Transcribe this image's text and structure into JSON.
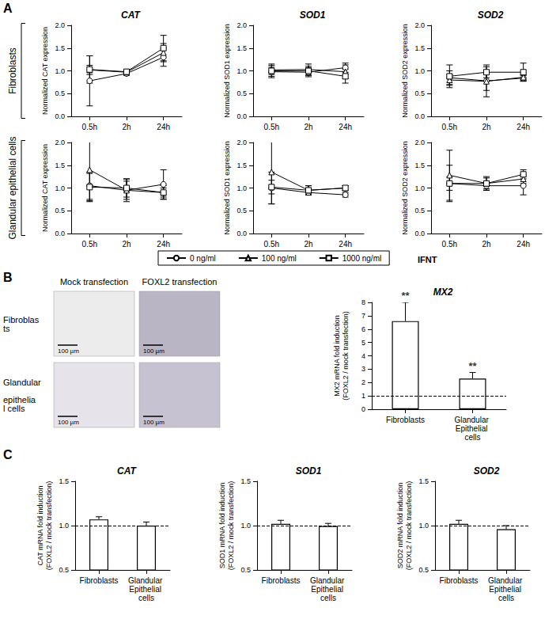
{
  "figure": {
    "panel_labels": [
      "A",
      "B",
      "C"
    ],
    "row_labels": [
      "Fibroblasts",
      "Glandular epithelial cells"
    ],
    "legend_title": "IFNT",
    "images": {
      "columns": [
        "Mock transfection",
        "FOXL2 transfection"
      ],
      "rows": [
        "Fibroblasts",
        "Glandular epithelial cells"
      ],
      "scale_bar": "100 µm"
    }
  },
  "chart_data": [
    {
      "type": "line",
      "title": "CAT",
      "y_label": "Normalized CAT expression",
      "categories": [
        "0.5h",
        "2h",
        "24h"
      ],
      "ylim": [
        0,
        2
      ],
      "yticks": [
        {
          "value": 0,
          "label": "0.0"
        },
        0.5,
        {
          "value": 1,
          "label": "1.0"
        },
        1.5,
        {
          "value": 2,
          "label": "2.0"
        }
      ],
      "grid": false,
      "legend": "bottom",
      "series": [
        {
          "name": "0 ng/ml",
          "color": "#000000",
          "marker": "circle",
          "values": [
            0.78,
            0.94,
            1.3
          ],
          "errors": [
            0.55,
            0.04,
            0.2
          ]
        },
        {
          "name": "100 ng/ml",
          "color": "#000000",
          "marker": "triangle",
          "values": [
            1.02,
            0.97,
            1.4
          ],
          "errors": [
            0.1,
            0.05,
            0.2
          ]
        },
        {
          "name": "1000 ng/ml",
          "color": "#000000",
          "marker": "square",
          "values": [
            1.03,
            0.98,
            1.5
          ],
          "errors": [
            0.3,
            0.04,
            0.28
          ]
        }
      ]
    },
    {
      "type": "line",
      "title": "SOD1",
      "y_label": "Normalized SOD1 expression",
      "categories": [
        "0.5h",
        "2h",
        "24h"
      ],
      "ylim": [
        0,
        2
      ],
      "yticks": [
        {
          "value": 0,
          "label": "0.0"
        },
        0.5,
        {
          "value": 1,
          "label": "1.0"
        },
        1.5,
        {
          "value": 2,
          "label": "2.0"
        }
      ],
      "grid": false,
      "legend": "bottom",
      "series": [
        {
          "name": "0 ng/ml",
          "color": "#000000",
          "marker": "circle",
          "values": [
            0.98,
            0.97,
            1.07
          ],
          "errors": [
            0.1,
            0.1,
            0.1
          ]
        },
        {
          "name": "100 ng/ml",
          "color": "#000000",
          "marker": "triangle",
          "values": [
            1.02,
            1.03,
            0.98
          ],
          "errors": [
            0.1,
            0.12,
            0.15
          ]
        },
        {
          "name": "1000 ng/ml",
          "color": "#000000",
          "marker": "square",
          "values": [
            1.0,
            1.0,
            0.88
          ],
          "errors": [
            0.15,
            0.1,
            0.15
          ]
        }
      ]
    },
    {
      "type": "line",
      "title": "SOD2",
      "y_label": "Normalized SOD2 expression",
      "categories": [
        "0.5h",
        "2h",
        "24h"
      ],
      "ylim": [
        0,
        2
      ],
      "yticks": [
        {
          "value": 0,
          "label": "0.0"
        },
        0.5,
        {
          "value": 1,
          "label": "1.0"
        },
        1.5,
        {
          "value": 2,
          "label": "2.0"
        }
      ],
      "grid": false,
      "legend": "bottom",
      "series": [
        {
          "name": "0 ng/ml",
          "color": "#000000",
          "marker": "circle",
          "values": [
            0.85,
            0.78,
            0.84
          ],
          "errors": [
            0.15,
            0.35,
            0.06
          ]
        },
        {
          "name": "100 ng/ml",
          "color": "#000000",
          "marker": "triangle",
          "values": [
            0.8,
            0.77,
            0.86
          ],
          "errors": [
            0.12,
            0.2,
            0.06
          ]
        },
        {
          "name": "1000 ng/ml",
          "color": "#000000",
          "marker": "square",
          "values": [
            0.88,
            0.97,
            0.97
          ],
          "errors": [
            0.25,
            0.12,
            0.2
          ]
        }
      ]
    },
    {
      "type": "line",
      "y_label": "Normalized CAT expression",
      "categories": [
        "0.5h",
        "2h",
        "24h"
      ],
      "ylim": [
        0,
        2
      ],
      "yticks": [
        {
          "value": 0,
          "label": "0.0"
        },
        0.5,
        {
          "value": 1,
          "label": "1.0"
        },
        1.5,
        {
          "value": 2,
          "label": "2.0"
        }
      ],
      "grid": false,
      "legend": "bottom",
      "series": [
        {
          "name": "0 ng/ml",
          "color": "#000000",
          "marker": "circle",
          "values": [
            1.05,
            0.95,
            1.08
          ],
          "errors": [
            0.3,
            0.25,
            0.32
          ]
        },
        {
          "name": "100 ng/ml",
          "color": "#000000",
          "marker": "triangle",
          "values": [
            1.4,
            0.95,
            0.9
          ],
          "errors": [
            0.7,
            0.2,
            0.15
          ]
        },
        {
          "name": "1000 ng/ml",
          "color": "#000000",
          "marker": "square",
          "values": [
            1.02,
            1.0,
            0.9
          ],
          "errors": [
            0.3,
            0.2,
            0.1
          ]
        }
      ]
    },
    {
      "type": "line",
      "y_label": "Normalized SOD1 expression",
      "categories": [
        "0.5h",
        "2h",
        "24h"
      ],
      "ylim": [
        0,
        2
      ],
      "yticks": [
        {
          "value": 0,
          "label": "0.0"
        },
        0.5,
        {
          "value": 1,
          "label": "1.0"
        },
        1.5,
        {
          "value": 2,
          "label": "2.0"
        }
      ],
      "grid": false,
      "legend": "bottom",
      "series": [
        {
          "name": "0 ng/ml",
          "color": "#000000",
          "marker": "circle",
          "values": [
            1.0,
            0.9,
            0.85
          ],
          "errors": [
            0.35,
            0.05,
            0.05
          ]
        },
        {
          "name": "100 ng/ml",
          "color": "#000000",
          "marker": "triangle",
          "values": [
            1.35,
            0.95,
            1.0
          ],
          "errors": [
            0.7,
            0.1,
            0.05
          ]
        },
        {
          "name": "1000 ng/ml",
          "color": "#000000",
          "marker": "square",
          "values": [
            1.02,
            0.95,
            1.0
          ],
          "errors": [
            0.15,
            0.1,
            0.05
          ]
        }
      ]
    },
    {
      "type": "line",
      "y_label": "Normalized SOD2 expression",
      "categories": [
        "0.5h",
        "2h",
        "24h"
      ],
      "ylim": [
        0,
        2
      ],
      "yticks": [
        {
          "value": 0,
          "label": "0.0"
        },
        0.5,
        {
          "value": 1,
          "label": "1.0"
        },
        1.5,
        {
          "value": 2,
          "label": "2.0"
        }
      ],
      "grid": false,
      "legend": "bottom",
      "series": [
        {
          "name": "0 ng/ml",
          "color": "#000000",
          "marker": "circle",
          "values": [
            1.1,
            1.05,
            1.05
          ],
          "errors": [
            0.4,
            0.1,
            0.2
          ]
        },
        {
          "name": "100 ng/ml",
          "color": "#000000",
          "marker": "triangle",
          "values": [
            1.28,
            1.1,
            1.2
          ],
          "errors": [
            0.55,
            0.15,
            0.1
          ]
        },
        {
          "name": "1000 ng/ml",
          "color": "#000000",
          "marker": "square",
          "values": [
            1.1,
            1.1,
            1.3
          ],
          "errors": [
            0.15,
            0.12,
            0.1
          ]
        }
      ]
    },
    {
      "type": "bar",
      "title": "MX2",
      "y_label": "MX2 mRNA fold induction (FOXL2 / mock transfection)",
      "categories": [
        "Fibroblasts",
        "Glandular Epithelial cells"
      ],
      "values": [
        6.6,
        2.3
      ],
      "errors": [
        1.4,
        0.45
      ],
      "annotations": [
        "**",
        "**"
      ],
      "baseline": 1,
      "color": "#ffffff",
      "ylim": [
        0,
        8
      ],
      "yticks": [
        0,
        1,
        2,
        3,
        4,
        5,
        6,
        7,
        8
      ],
      "grid": false
    },
    {
      "type": "bar",
      "title": "CAT",
      "y_label": "CAT mRNA fold induction (FOXL2 / mock transfection)",
      "categories": [
        "Fibroblasts",
        "Glandular Epithelial cells"
      ],
      "values": [
        1.07,
        1.0
      ],
      "errors": [
        0.03,
        0.04
      ],
      "baseline": 1,
      "color": "#ffffff",
      "ylim": [
        0.5,
        1.5
      ],
      "yticks": [
        0.5,
        {
          "value": 1,
          "label": "1.0"
        },
        1.5
      ],
      "grid": false
    },
    {
      "type": "bar",
      "title": "SOD1",
      "y_label": "SOD1 mRNA fold induction (FOXL2 / mock transfection)",
      "categories": [
        "Fibroblasts",
        "Glandular Epithelial cells"
      ],
      "values": [
        1.02,
        0.995
      ],
      "errors": [
        0.04,
        0.03
      ],
      "baseline": 1,
      "color": "#ffffff",
      "ylim": [
        0.5,
        1.5
      ],
      "yticks": [
        0.5,
        {
          "value": 1,
          "label": "1.0"
        },
        1.5
      ],
      "grid": false
    },
    {
      "type": "bar",
      "title": "SOD2",
      "y_label": "SOD2 mRNA fold induction (FOXL2 / mock transfection)",
      "categories": [
        "Fibroblasts",
        "Glandular Epithelial cells"
      ],
      "values": [
        1.02,
        0.96
      ],
      "errors": [
        0.04,
        0.04
      ],
      "baseline": 1,
      "color": "#ffffff",
      "ylim": [
        0.5,
        1.5
      ],
      "yticks": [
        0.5,
        {
          "value": 1,
          "label": "1.0"
        },
        1.5
      ],
      "grid": false
    }
  ]
}
